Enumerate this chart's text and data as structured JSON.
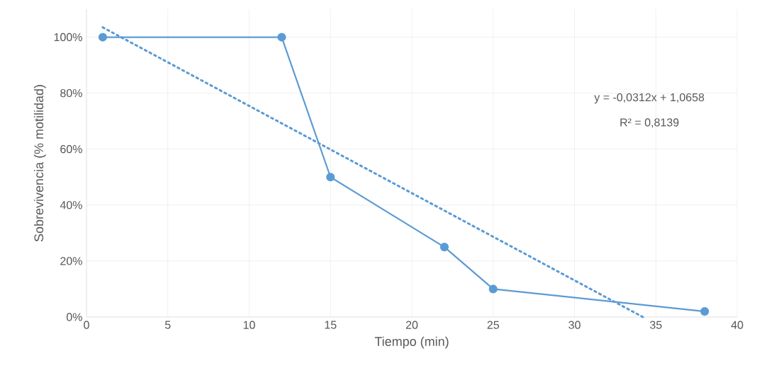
{
  "chart_data": {
    "type": "line",
    "xlabel": "Tiempo (min)",
    "ylabel": "Sobrevivencia (% motilidad)",
    "series": [
      {
        "color": "#5b9bd5",
        "x": [
          1,
          12,
          15,
          22,
          25,
          38
        ],
        "values": [
          100,
          100,
          50,
          25,
          10,
          2
        ],
        "marker": "circle",
        "line_style": "solid"
      },
      {
        "color": "#5b9bd5",
        "x": [
          1,
          34.2
        ],
        "values": [
          103.5,
          0
        ],
        "marker": "none",
        "line_style": "dotted"
      }
    ],
    "xlim": [
      0,
      40
    ],
    "xticks": [
      0,
      5,
      10,
      15,
      20,
      25,
      30,
      35,
      40
    ],
    "ylim": [
      0,
      110
    ],
    "yticks": [
      {
        "value": 0,
        "label": "0%"
      },
      {
        "value": 20,
        "label": "20%"
      },
      {
        "value": 40,
        "label": "40%"
      },
      {
        "value": 60,
        "label": "60%"
      },
      {
        "value": 80,
        "label": "80%"
      },
      {
        "value": 100,
        "label": "100%"
      }
    ],
    "grid": true,
    "annotations": [
      "y = -0,0312x  + 1,0658",
      "R² = 0,8139"
    ]
  }
}
